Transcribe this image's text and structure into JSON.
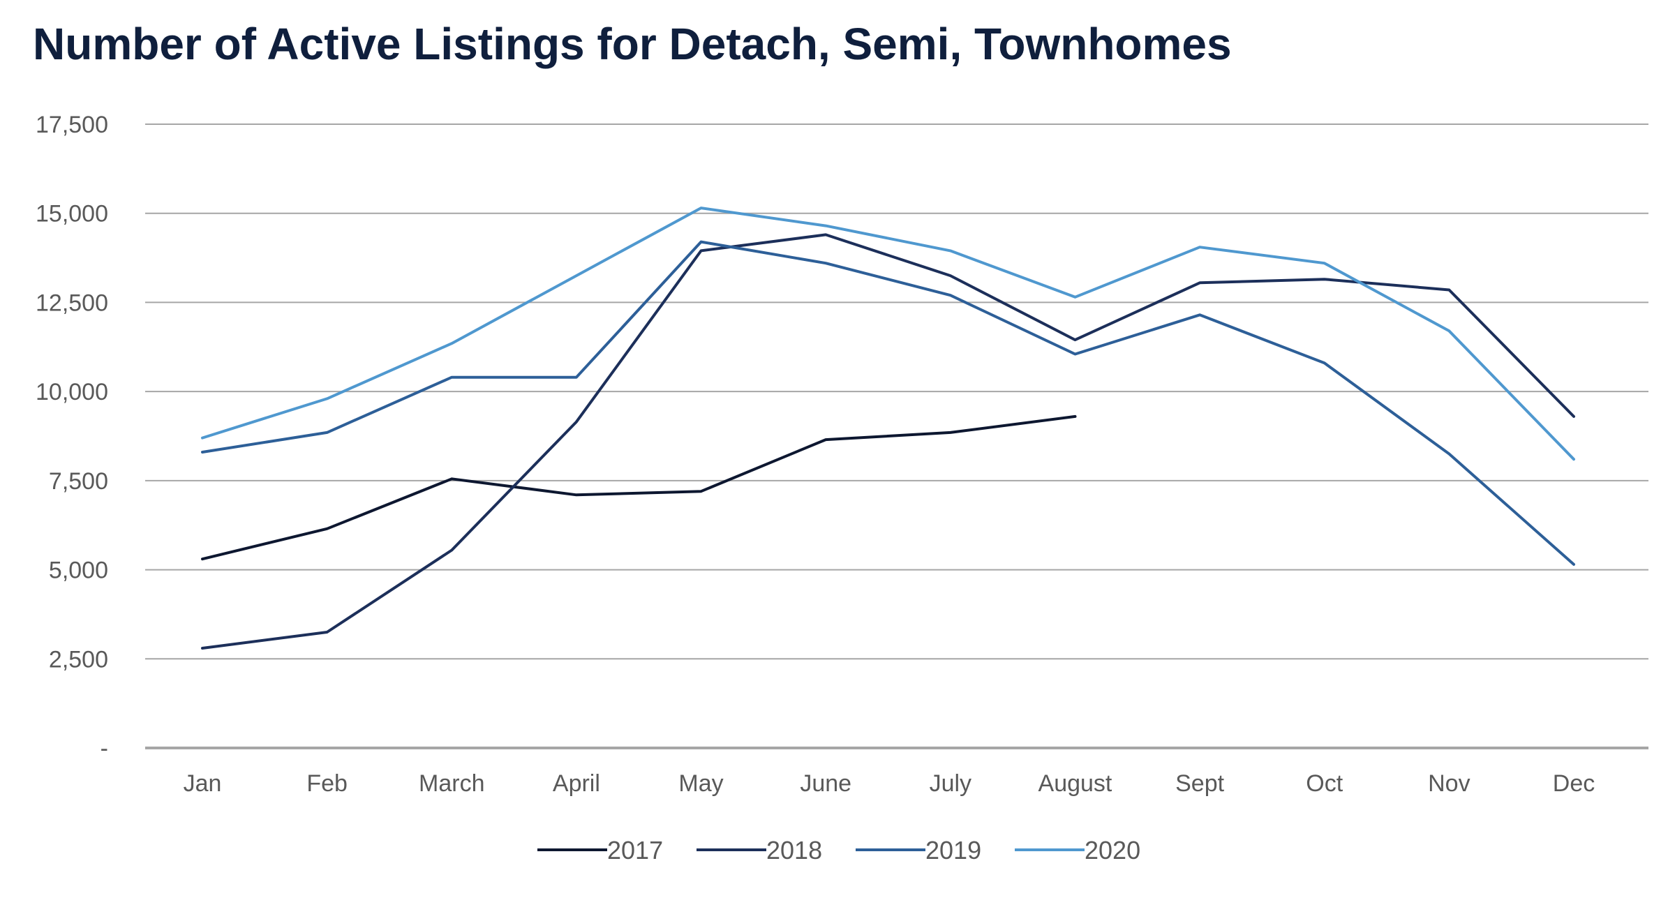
{
  "chart_data": {
    "type": "line",
    "title": "Number of Active Listings for Detach, Semi, Townhomes",
    "xlabel": "",
    "ylabel": "",
    "categories": [
      "Jan",
      "Feb",
      "March",
      "April",
      "May",
      "June",
      "July",
      "August",
      "Sept",
      "Oct",
      "Nov",
      "Dec"
    ],
    "y_tick_values": [
      0,
      2500,
      5000,
      7500,
      10000,
      12500,
      15000,
      17500
    ],
    "y_tick_labels": [
      "-",
      "2,500",
      "5,000",
      "7,500",
      "10,000",
      "12,500",
      "15,000",
      "17,500"
    ],
    "ylim": [
      0,
      17500
    ],
    "grid": true,
    "legend_position": "bottom",
    "series": [
      {
        "name": "2017",
        "color": "#0d1730",
        "values": [
          5300,
          6150,
          7550,
          7100,
          7200,
          8650,
          8850,
          9300,
          null,
          null,
          null,
          null
        ]
      },
      {
        "name": "2018",
        "color": "#1c2f5a",
        "values": [
          2800,
          3250,
          5550,
          9150,
          13950,
          14400,
          13250,
          11450,
          13050,
          13150,
          12850,
          9300
        ]
      },
      {
        "name": "2019",
        "color": "#2d5f98",
        "values": [
          8300,
          8850,
          10400,
          10400,
          14200,
          13600,
          12700,
          11050,
          12150,
          10800,
          8250,
          5150
        ]
      },
      {
        "name": "2020",
        "color": "#4f98cf",
        "values": [
          8700,
          9800,
          11350,
          13250,
          15150,
          14650,
          13950,
          12650,
          14050,
          13600,
          11700,
          8100
        ]
      }
    ]
  },
  "colors": {
    "title": "#0f1f3d",
    "tick_text": "#595959",
    "gridline": "#a6a6a6",
    "baseline": "#a6a6a6"
  }
}
